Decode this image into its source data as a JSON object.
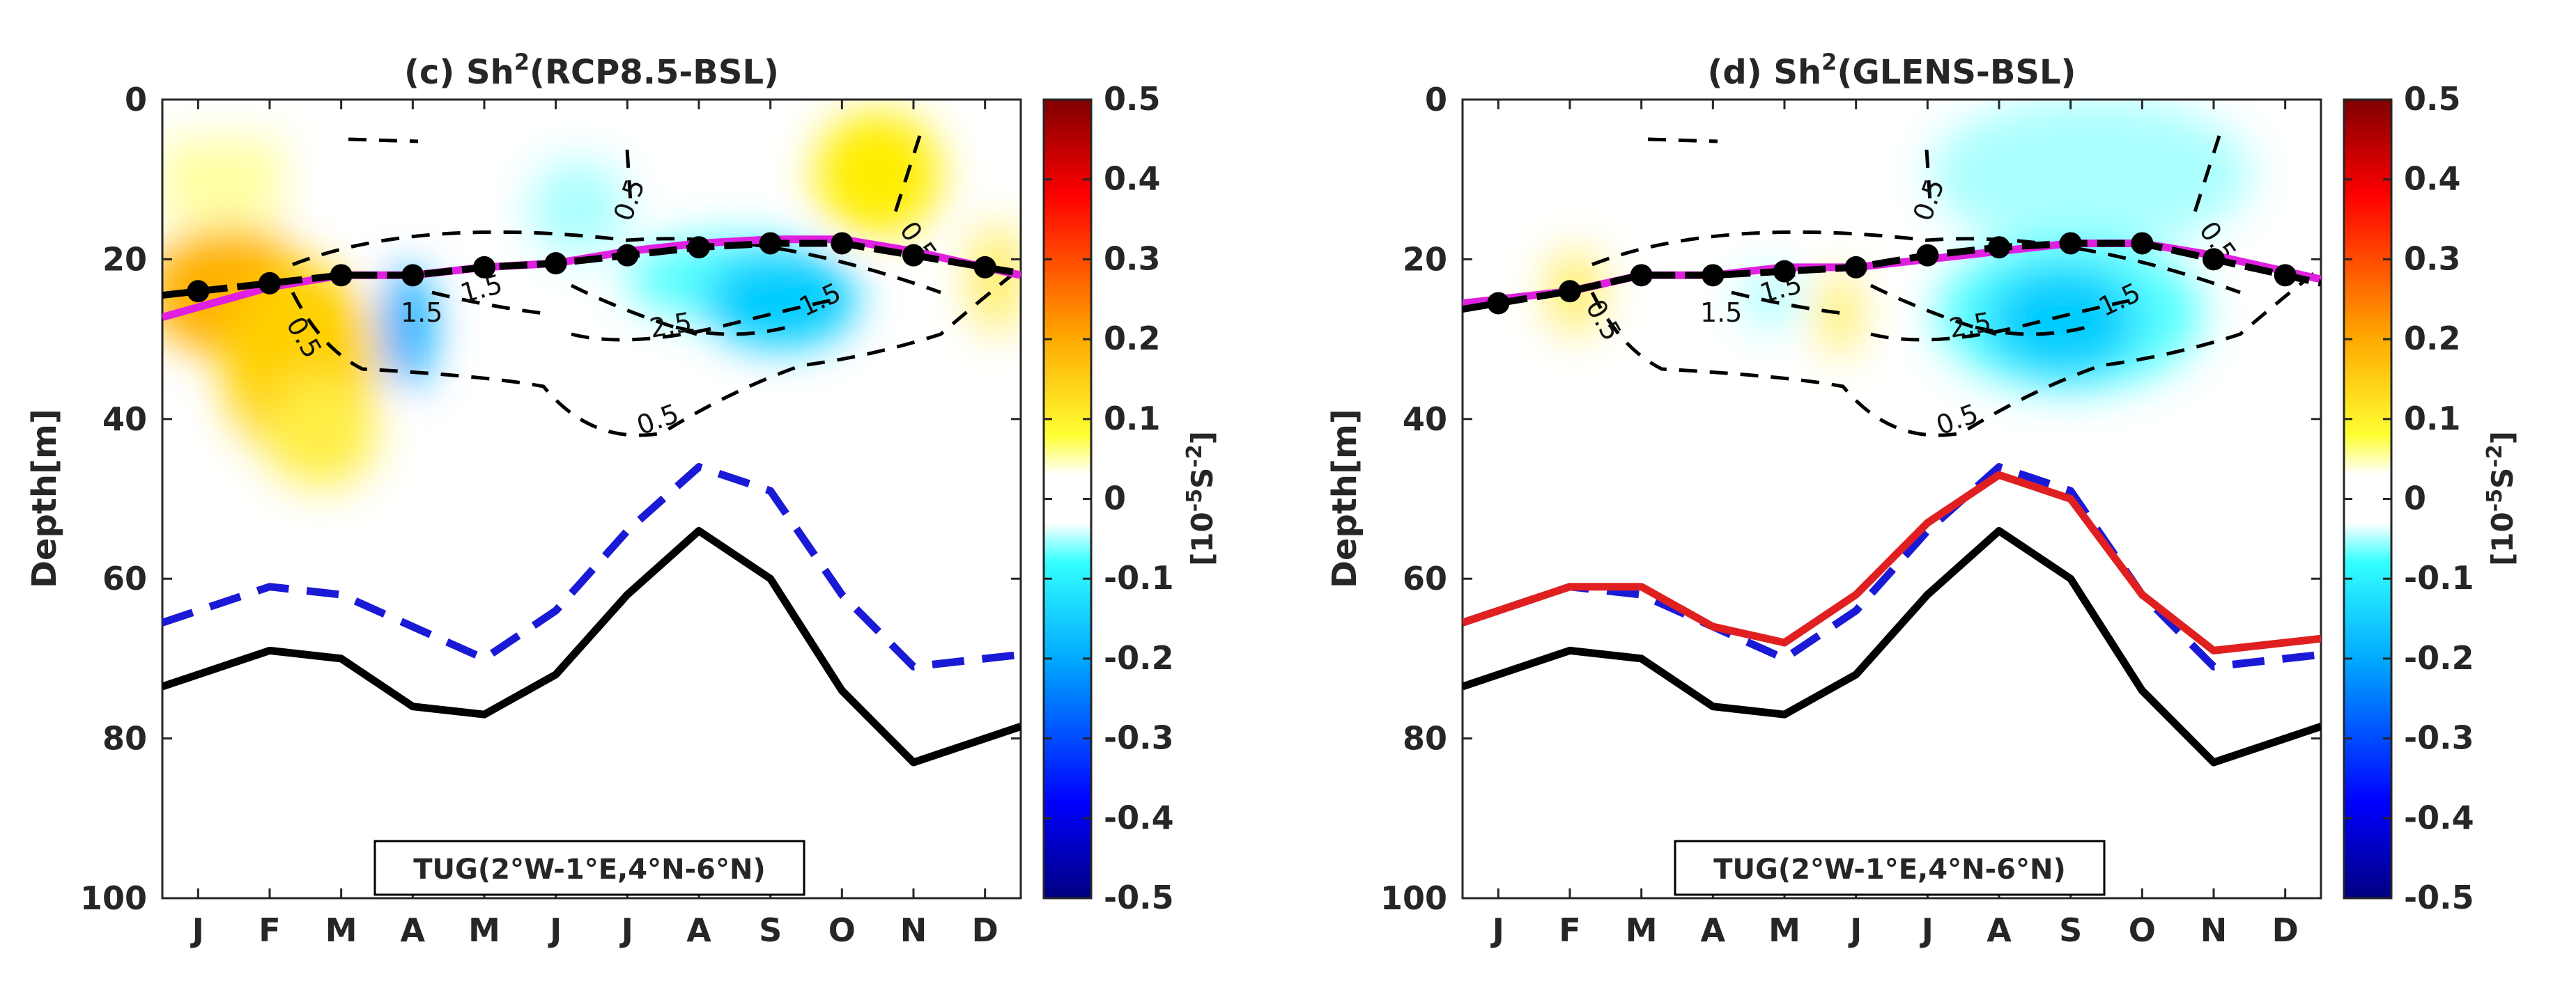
{
  "chart_data": [
    {
      "type": "line",
      "panel": "c",
      "title": "(c) Sh",
      "title_sup": "2",
      "title_suffix": "(RCP8.5-BSL)",
      "ylabel": "Depth[m]",
      "categories": [
        "J",
        "F",
        "M",
        "A",
        "M",
        "J",
        "J",
        "A",
        "S",
        "O",
        "N",
        "D"
      ],
      "ylim": [
        0,
        100
      ],
      "y_reversed": true,
      "yticks": [
        "0",
        "20",
        "40",
        "60",
        "80",
        "100"
      ],
      "region_label": "TUG(2°W-1°E,4°N-6°N)",
      "contour_labels": [
        "0.5",
        "0.5",
        "0.5",
        "1.5",
        "1.5",
        "2.5",
        "1.5",
        "0.5",
        "0.5"
      ],
      "series": [
        {
          "values": [
            72,
            69,
            70,
            76,
            77,
            72,
            62,
            54,
            60,
            74,
            83,
            80
          ],
          "color": "#000000",
          "style": "solid"
        },
        {
          "values": [
            64,
            61,
            62,
            66,
            70,
            64,
            54,
            46,
            49,
            62,
            71,
            70
          ],
          "color": "#1a1ad6",
          "style": "dashed"
        },
        {
          "values": [
            26,
            23.5,
            22,
            22,
            21,
            20.5,
            19,
            18,
            17.5,
            17.5,
            19,
            21
          ],
          "color": "#e020e0",
          "style": "solid"
        },
        {
          "values": [
            24,
            23,
            22,
            22,
            21,
            20.5,
            19.5,
            18.5,
            18,
            18,
            19.5,
            21
          ],
          "color": "#000000",
          "style": "dash-marker"
        }
      ],
      "colorbar": {
        "label": "[10",
        "label_exp": "-5",
        "label_unit": "S",
        "label_unit_exp": "-2",
        "label_close": "]",
        "ticks": [
          "0.5",
          "0.4",
          "0.3",
          "0.2",
          "0.1",
          "0",
          "-0.1",
          "-0.2",
          "-0.3",
          "-0.4",
          "-0.5"
        ],
        "range": [
          -0.5,
          0.5
        ]
      }
    },
    {
      "type": "line",
      "panel": "d",
      "title": "(d) Sh",
      "title_sup": "2",
      "title_suffix": "(GLENS-BSL)",
      "ylabel": "Depth[m]",
      "categories": [
        "J",
        "F",
        "M",
        "A",
        "M",
        "J",
        "J",
        "A",
        "S",
        "O",
        "N",
        "D"
      ],
      "ylim": [
        0,
        100
      ],
      "y_reversed": true,
      "yticks": [
        "0",
        "20",
        "40",
        "60",
        "80",
        "100"
      ],
      "region_label": "TUG(2°W-1°E,4°N-6°N)",
      "contour_labels": [
        "0.5",
        "0.5",
        "0.5",
        "1.5",
        "1.5",
        "2.5",
        "1.5",
        "0.5"
      ],
      "series": [
        {
          "values": [
            72,
            69,
            70,
            76,
            77,
            72,
            62,
            54,
            60,
            74,
            83,
            80
          ],
          "color": "#000000",
          "style": "solid"
        },
        {
          "values": [
            64,
            61,
            62,
            66,
            70,
            64,
            54,
            46,
            49,
            62,
            71,
            70
          ],
          "color": "#1a1ad6",
          "style": "dashed"
        },
        {
          "values": [
            64,
            61,
            61,
            66,
            68,
            62,
            53,
            47,
            50,
            62,
            69,
            68
          ],
          "color": "#e02020",
          "style": "solid"
        },
        {
          "values": [
            25,
            24,
            22,
            22,
            21,
            21,
            20,
            19,
            18,
            18,
            19.5,
            21.5
          ],
          "color": "#e020e0",
          "style": "solid"
        },
        {
          "values": [
            25.5,
            24,
            22,
            22,
            21.5,
            21,
            19.5,
            18.5,
            18,
            18,
            20,
            22
          ],
          "color": "#000000",
          "style": "dash-marker"
        }
      ],
      "colorbar": {
        "label": "[10",
        "label_exp": "-5",
        "label_unit": "S",
        "label_unit_exp": "-2",
        "label_close": "]",
        "ticks": [
          "0.5",
          "0.4",
          "0.3",
          "0.2",
          "0.1",
          "0",
          "-0.1",
          "-0.2",
          "-0.3",
          "-0.4",
          "-0.5"
        ],
        "range": [
          -0.5,
          0.5
        ]
      }
    }
  ]
}
